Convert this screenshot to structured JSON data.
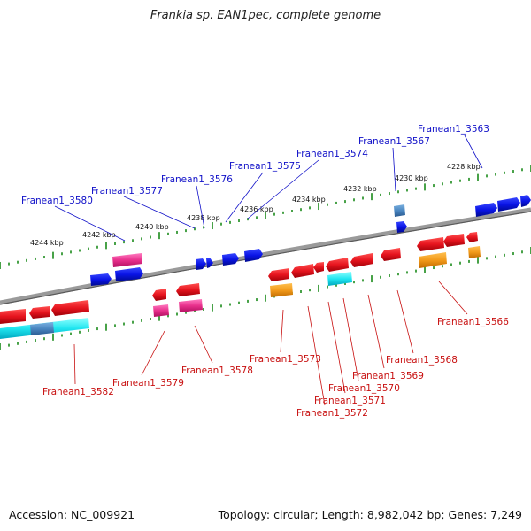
{
  "title": "Frankia sp. EAN1pec, complete genome",
  "footer": {
    "accession": "Accession: NC_009921",
    "summary": "Topology: circular; Length: 8,982,042 bp; Genes: 7,249"
  },
  "scale_labels": [
    "4228 kbp",
    "4230 kbp",
    "4232 kbp",
    "4234 kbp",
    "4236 kbp",
    "4238 kbp",
    "4240 kbp",
    "4242 kbp",
    "4244 kbp"
  ],
  "genes_forward": [
    "Franean1_3563",
    "Franean1_3567",
    "Franean1_3574",
    "Franean1_3575",
    "Franean1_3576",
    "Franean1_3577",
    "Franean1_3580"
  ],
  "genes_reverse": [
    "Franean1_3566",
    "Franean1_3568",
    "Franean1_3569",
    "Franean1_3570",
    "Franean1_3571",
    "Franean1_3572",
    "Franean1_3573",
    "Franean1_3578",
    "Franean1_3579",
    "Franean1_3582"
  ],
  "colors": {
    "forward_label": "#1010c8",
    "reverse_label": "#c81010",
    "forward_gene": "#0a14e6",
    "reverse_gene": "#e6141e",
    "magenta_feature": "#e8308c",
    "orange_feature": "#f29a1a",
    "cyan_feature": "#20e6f0",
    "steelblue_feature": "#4a86c0",
    "backbone": "#8c8c8c",
    "tick": "#1a8a1a"
  }
}
